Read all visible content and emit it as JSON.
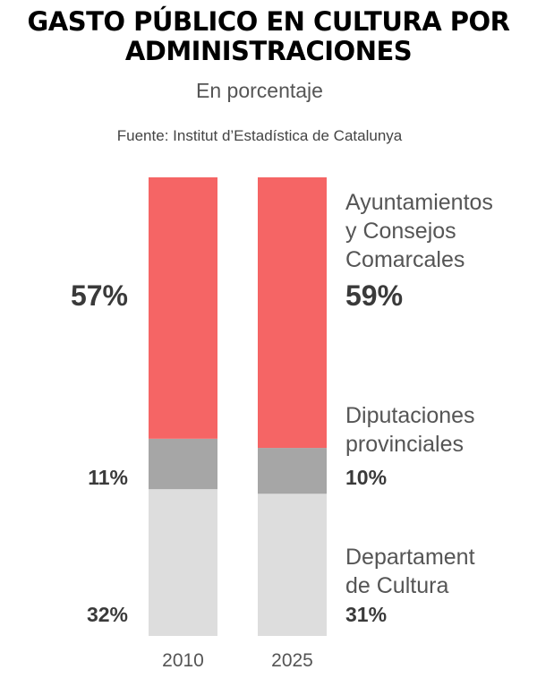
{
  "title": {
    "line1": "GASTO PÚBLICO EN CULTURA POR",
    "line2": "ADMINISTRACIONES"
  },
  "subtitle": "En porcentaje",
  "source": "Fuente: Institut d’Estadística de Catalunya",
  "colors": {
    "ayuntamientos": "#f56565",
    "diputaciones": "#a6a6a6",
    "departament": "#dddddd"
  },
  "chart_data": {
    "type": "bar",
    "stacked": true,
    "normalized": true,
    "categories": [
      "2010",
      "2025"
    ],
    "series": [
      {
        "name": "Departament de Cultura",
        "name_lines": [
          "Departament",
          "de Cultura"
        ],
        "values": [
          32,
          31
        ],
        "labels": [
          "32%",
          "31%"
        ],
        "color": "#dddddd"
      },
      {
        "name": "Diputaciones provinciales",
        "name_lines": [
          "Diputaciones",
          "provinciales"
        ],
        "values": [
          11,
          10
        ],
        "labels": [
          "11%",
          "10%"
        ],
        "color": "#a6a6a6"
      },
      {
        "name": "Ayuntamientos y Consejos Comarcales",
        "name_lines": [
          "Ayuntamientos",
          "y Consejos",
          "Comarcales"
        ],
        "values": [
          57,
          59
        ],
        "labels": [
          "57%",
          "59%"
        ],
        "color": "#f56565"
      }
    ],
    "title": "GASTO PÚBLICO EN CULTURA POR ADMINISTRACIONES",
    "subtitle": "En porcentaje",
    "ylim": [
      0,
      100
    ],
    "grid": false,
    "legend": "right"
  }
}
